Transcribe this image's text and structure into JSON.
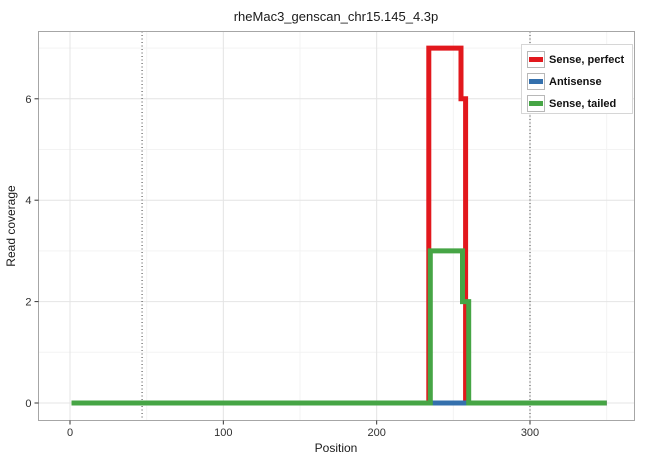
{
  "chart_data": {
    "type": "line",
    "title": "rheMac3_genscan_chr15.145_4.3p",
    "xlabel": "Position",
    "ylabel": "Read coverage",
    "xlim": [
      -21,
      368
    ],
    "ylim": [
      -0.35,
      7.35
    ],
    "xticks": [
      0,
      100,
      200,
      300
    ],
    "yticks": [
      0,
      2,
      4,
      6
    ],
    "xticks_minor": [
      50,
      150,
      250,
      350
    ],
    "yticks_minor": [
      1,
      3,
      5,
      7
    ],
    "grid": true,
    "legend_position": "top-right-inside",
    "vlines": {
      "positions": [
        47,
        300
      ],
      "style": "dotted",
      "color": "#404040"
    },
    "panel_border_color": "#a6a6a6",
    "gridline_major_color": "#e4e4e4",
    "gridline_minor_color": "#f3f3f3",
    "series": [
      {
        "name": "Sense, perfect",
        "color": "#E2181D",
        "points": [
          [
            1,
            0
          ],
          [
            234,
            0
          ],
          [
            234,
            7
          ],
          [
            255,
            7
          ],
          [
            255,
            6
          ],
          [
            258,
            6
          ],
          [
            258,
            0
          ],
          [
            350,
            0
          ]
        ]
      },
      {
        "name": "Antisense",
        "color": "#3470AD",
        "points": [
          [
            1,
            0
          ],
          [
            350,
            0
          ]
        ]
      },
      {
        "name": "Sense, tailed",
        "color": "#46A545",
        "points": [
          [
            1,
            0
          ],
          [
            235,
            0
          ],
          [
            235,
            3
          ],
          [
            256,
            3
          ],
          [
            256,
            2
          ],
          [
            260,
            2
          ],
          [
            260,
            0
          ],
          [
            350,
            0
          ]
        ]
      }
    ]
  }
}
